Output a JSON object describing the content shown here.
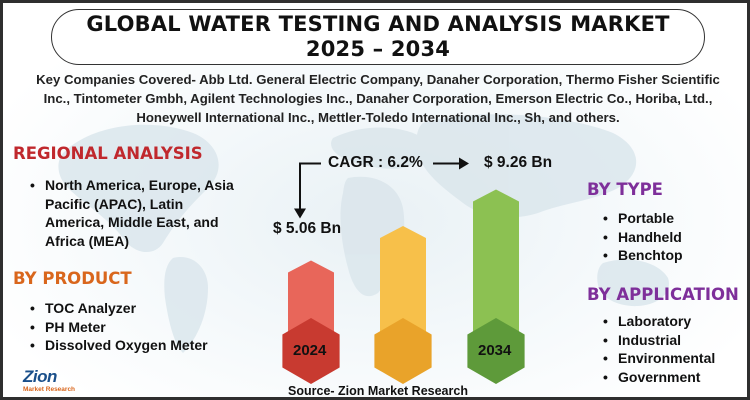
{
  "title": {
    "line1": "GLOBAL WATER TESTING AND ANALYSIS MARKET",
    "line2": "2025 – 2034"
  },
  "companies": "Key Companies Covered- Abb Ltd. General Electric Company, Danaher Corporation, Thermo Fisher Scientific Inc., Tintometer Gmbh, Agilent Technologies Inc., Danaher Corporation, Emerson Electric Co., Horiba, Ltd., Honeywell International Inc., Mettler-Toledo International Inc., Sh, and others.",
  "regional": {
    "heading": "REGIONAL ANALYSIS",
    "items": [
      "North America, Europe, Asia Pacific (APAC), Latin America, Middle East, and Africa (MEA)"
    ]
  },
  "product": {
    "heading": "BY PRODUCT",
    "items": [
      "TOC Analyzer",
      "PH Meter",
      "Dissolved Oxygen Meter"
    ]
  },
  "type": {
    "heading": "BY TYPE",
    "items": [
      "Portable",
      "Handheld",
      "Benchtop"
    ]
  },
  "application": {
    "heading": "BY APPLICATION",
    "items": [
      "Laboratory",
      "Industrial",
      "Environmental",
      "Government"
    ]
  },
  "chart_data": {
    "type": "bar",
    "categories": [
      "2024",
      "",
      "2034"
    ],
    "values": [
      5.06,
      7.1,
      9.26
    ],
    "value_labels": [
      "$ 5.06 Bn",
      "",
      "$ 9.26 Bn"
    ],
    "annotation": "CAGR : 6.2%",
    "colors": [
      "#e8665a",
      "#f7c04a",
      "#8cc152"
    ],
    "hex_colors": [
      "#c83a30",
      "#e9a32a",
      "#5e9a3a"
    ]
  },
  "source": "Source- Zion Market Research",
  "logo": {
    "name": "Zion",
    "tagline": "Market Research"
  }
}
